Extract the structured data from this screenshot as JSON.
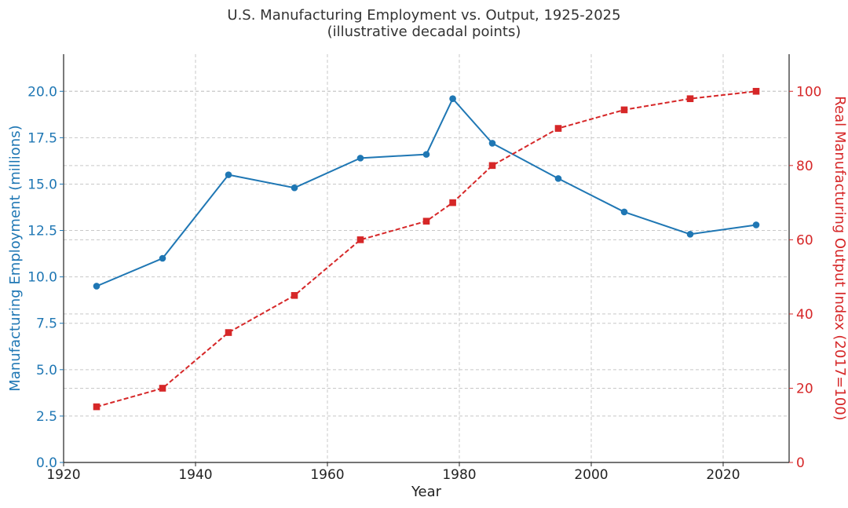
{
  "chart_data": {
    "type": "line",
    "title": "U.S. Manufacturing Employment vs. Output, 1925-2025",
    "subtitle": "(illustrative decadal points)",
    "xlabel": "Year",
    "ylabel_left": "Manufacturing Employment (millions)",
    "ylabel_right": "Real Manufacturing Output Index (2017=100)",
    "xlim": [
      1920,
      2030
    ],
    "ylim_left": [
      0,
      22
    ],
    "ylim_right": [
      0,
      110
    ],
    "x_ticks": [
      1920,
      1940,
      1960,
      1980,
      2000,
      2020
    ],
    "y_ticks_left": [
      0.0,
      2.5,
      5.0,
      7.5,
      10.0,
      12.5,
      15.0,
      17.5,
      20.0
    ],
    "y_ticks_right": [
      0,
      20,
      40,
      60,
      80,
      100
    ],
    "grid": true,
    "series": [
      {
        "axis": "left",
        "color": "#1f77b4",
        "marker": "circle",
        "line_style": "solid",
        "x": [
          1925,
          1935,
          1945,
          1955,
          1965,
          1975,
          1979,
          1985,
          1995,
          2005,
          2015,
          2025
        ],
        "values": [
          9.5,
          11.0,
          15.5,
          14.8,
          16.4,
          16.6,
          19.6,
          17.2,
          15.3,
          13.5,
          12.3,
          12.8
        ]
      },
      {
        "axis": "right",
        "color": "#d62728",
        "marker": "square",
        "line_style": "dashed",
        "x": [
          1925,
          1935,
          1945,
          1955,
          1965,
          1975,
          1979,
          1985,
          1995,
          2005,
          2015,
          2025
        ],
        "values": [
          15,
          20,
          35,
          45,
          60,
          65,
          70,
          80,
          90,
          95,
          98,
          100
        ]
      }
    ]
  },
  "colors": {
    "left_axis": "#1f77b4",
    "right_axis": "#d62728",
    "grid": "#c8c8c8",
    "text": "#333333"
  }
}
